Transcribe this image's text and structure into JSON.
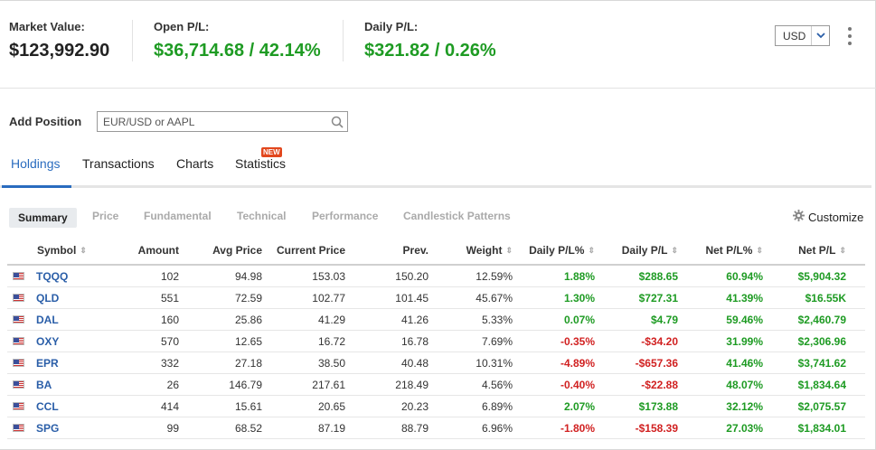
{
  "summary": {
    "market_value_label": "Market Value:",
    "market_value": "$123,992.90",
    "open_pl_label": "Open P/L:",
    "open_pl": "$36,714.68 / 42.14%",
    "daily_pl_label": "Daily P/L:",
    "daily_pl": "$321.82 / 0.26%",
    "currency": "USD"
  },
  "add_position": {
    "label": "Add Position",
    "placeholder": "EUR/USD or AAPL"
  },
  "tabs": [
    "Holdings",
    "Transactions",
    "Charts",
    "Statistics"
  ],
  "statistics_badge": "NEW",
  "subtabs": [
    "Summary",
    "Price",
    "Fundamental",
    "Technical",
    "Performance",
    "Candlestick Patterns"
  ],
  "customize_label": "Customize",
  "table": {
    "headers": [
      "Symbol",
      "Amount",
      "Avg Price",
      "Current Price",
      "Prev.",
      "Weight",
      "Daily P/L%",
      "Daily P/L",
      "Net P/L%",
      "Net P/L"
    ],
    "rows": [
      {
        "symbol": "TQQQ",
        "amount": "102",
        "avg": "94.98",
        "cur": "153.03",
        "prev": "150.20",
        "weight": "12.59%",
        "dpct": "1.88%",
        "dpl": "$288.65",
        "npct": "60.94%",
        "npl": "$5,904.32",
        "dpos": true
      },
      {
        "symbol": "QLD",
        "amount": "551",
        "avg": "72.59",
        "cur": "102.77",
        "prev": "101.45",
        "weight": "45.67%",
        "dpct": "1.30%",
        "dpl": "$727.31",
        "npct": "41.39%",
        "npl": "$16.55K",
        "dpos": true
      },
      {
        "symbol": "DAL",
        "amount": "160",
        "avg": "25.86",
        "cur": "41.29",
        "prev": "41.26",
        "weight": "5.33%",
        "dpct": "0.07%",
        "dpl": "$4.79",
        "npct": "59.46%",
        "npl": "$2,460.79",
        "dpos": true
      },
      {
        "symbol": "OXY",
        "amount": "570",
        "avg": "12.65",
        "cur": "16.72",
        "prev": "16.78",
        "weight": "7.69%",
        "dpct": "-0.35%",
        "dpl": "-$34.20",
        "npct": "31.99%",
        "npl": "$2,306.96",
        "dpos": false
      },
      {
        "symbol": "EPR",
        "amount": "332",
        "avg": "27.18",
        "cur": "38.50",
        "prev": "40.48",
        "weight": "10.31%",
        "dpct": "-4.89%",
        "dpl": "-$657.36",
        "npct": "41.46%",
        "npl": "$3,741.62",
        "dpos": false
      },
      {
        "symbol": "BA",
        "amount": "26",
        "avg": "146.79",
        "cur": "217.61",
        "prev": "218.49",
        "weight": "4.56%",
        "dpct": "-0.40%",
        "dpl": "-$22.88",
        "npct": "48.07%",
        "npl": "$1,834.64",
        "dpos": false
      },
      {
        "symbol": "CCL",
        "amount": "414",
        "avg": "15.61",
        "cur": "20.65",
        "prev": "20.23",
        "weight": "6.89%",
        "dpct": "2.07%",
        "dpl": "$173.88",
        "npct": "32.12%",
        "npl": "$2,075.57",
        "dpos": true
      },
      {
        "symbol": "SPG",
        "amount": "99",
        "avg": "68.52",
        "cur": "87.19",
        "prev": "88.79",
        "weight": "6.96%",
        "dpct": "-1.80%",
        "dpl": "-$158.39",
        "npct": "27.03%",
        "npl": "$1,834.01",
        "dpos": false
      }
    ]
  },
  "colors": {
    "positive": "#1e9b23",
    "negative": "#d12121",
    "accent": "#2a6cbf",
    "badge": "#e2471d"
  },
  "icons": {
    "search": "search-icon",
    "settings": "gear-icon",
    "menu": "kebab-menu-icon",
    "flag": "us-flag-icon",
    "dropdown": "chevron-down-icon",
    "sort": "sort-icon"
  }
}
